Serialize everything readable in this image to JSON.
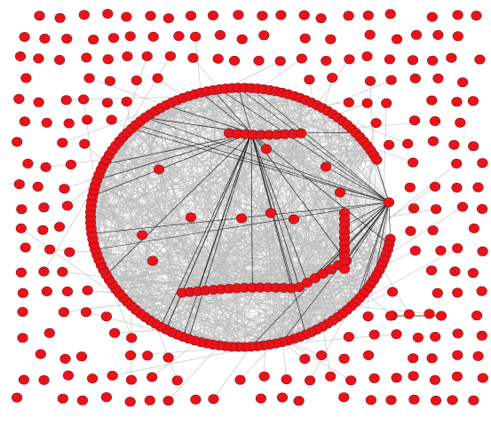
{
  "figure": {
    "type": "network-graph",
    "node_color": "#e8141b",
    "node_outline": "#9a0b0e",
    "edge_color_light": "#bdbdbd",
    "edge_color_dark": "#222222",
    "background": "#ffffff"
  }
}
